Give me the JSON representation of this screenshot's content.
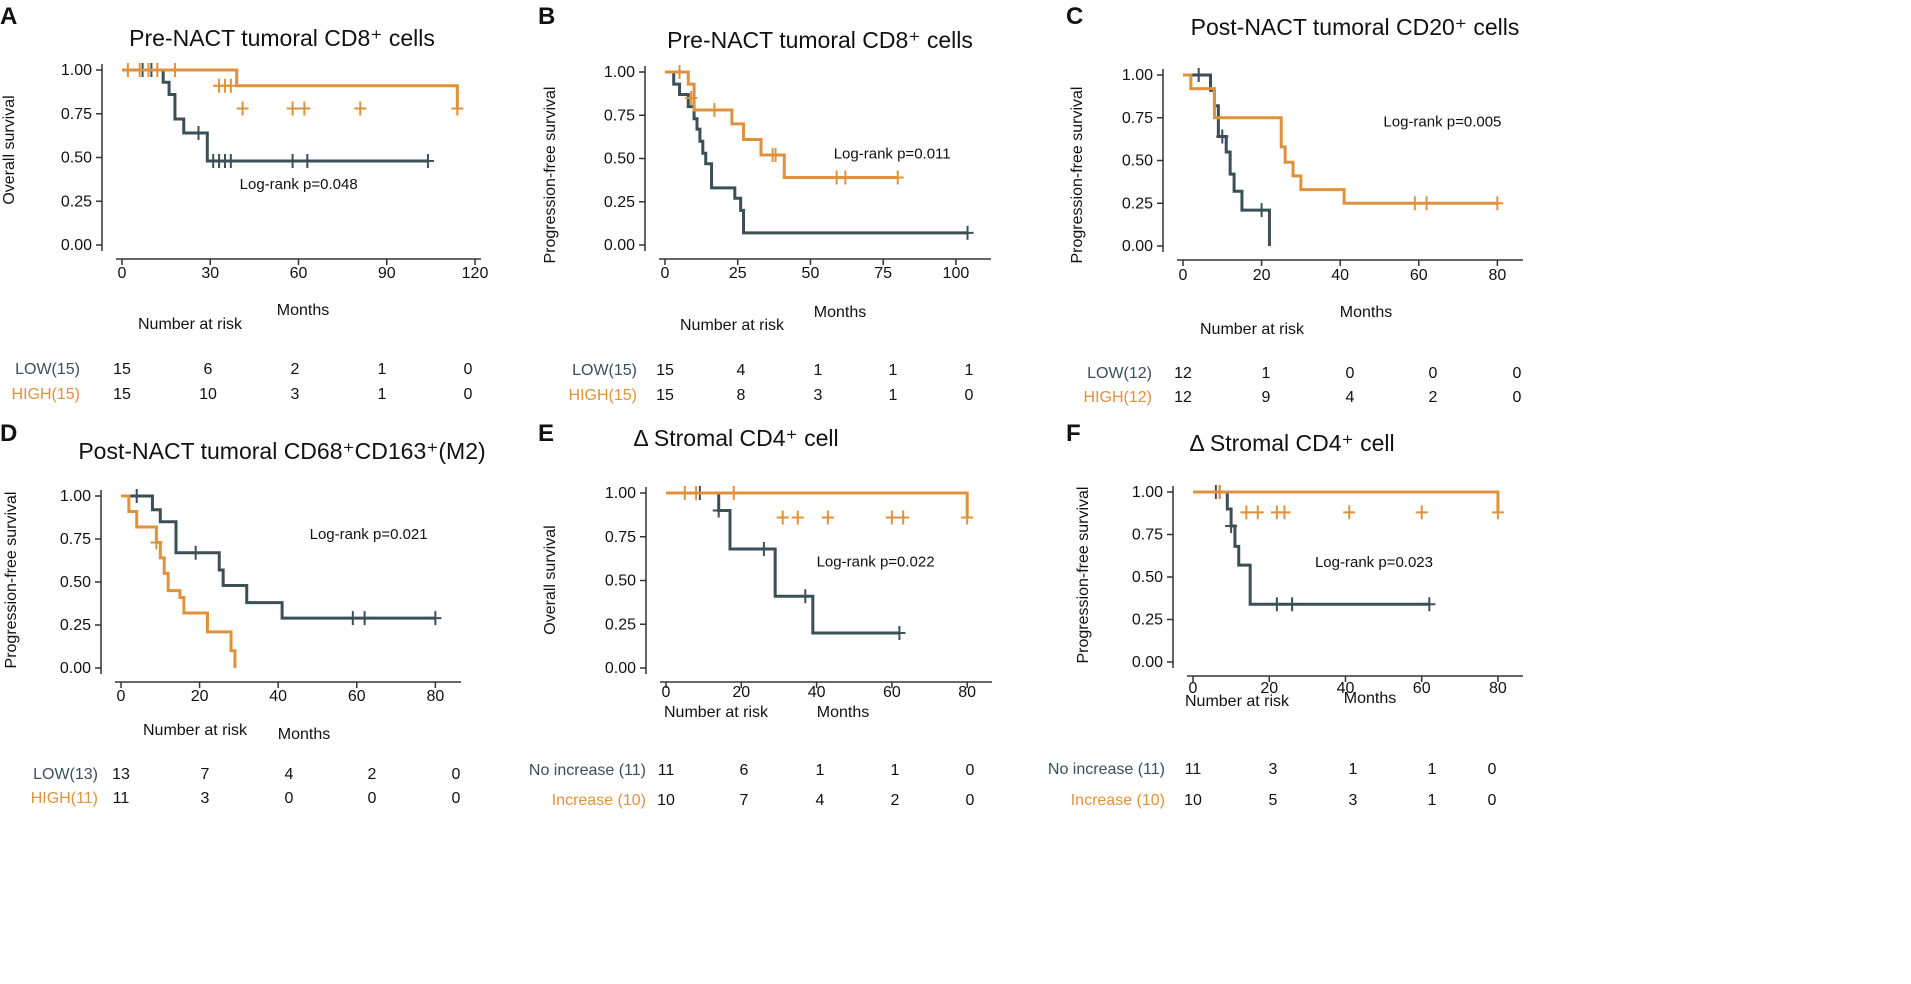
{
  "colors": {
    "low": "#3b4f57",
    "high": "#e0913b",
    "axis": "#333333",
    "text": "#111111"
  },
  "chart_data": [
    {
      "panel": "A",
      "type": "line",
      "title": "Pre-NACT tumoral CD8⁺ cells",
      "xlabel": "Months",
      "ylabel": "Overall survival",
      "xlim": [
        0,
        120
      ],
      "ylim": [
        0,
        1
      ],
      "xticks": [
        0,
        30,
        60,
        90,
        120
      ],
      "yticks": [
        0,
        0.25,
        0.5,
        0.75,
        1.0
      ],
      "ytick_labels": [
        "0.00",
        "0.25",
        "0.50",
        "0.75",
        "1.00"
      ],
      "pvalue": "Log-rank p=0.048",
      "pvalue_at": [
        40,
        0.32
      ],
      "risk_title": "Number at risk",
      "series": [
        {
          "name": "LOW",
          "role": "low",
          "x": [
            0,
            12,
            14,
            16,
            18,
            21,
            27,
            29,
            104
          ],
          "y": [
            1.0,
            1.0,
            0.93,
            0.86,
            0.72,
            0.64,
            0.64,
            0.48,
            0.48
          ],
          "censored": [
            [
              7,
              1.0
            ],
            [
              10,
              1.0
            ],
            [
              26,
              0.64
            ],
            [
              31,
              0.48
            ],
            [
              33,
              0.48
            ],
            [
              35,
              0.48
            ],
            [
              37,
              0.48
            ],
            [
              58,
              0.48
            ],
            [
              63,
              0.48
            ],
            [
              104,
              0.48
            ]
          ]
        },
        {
          "name": "HIGH",
          "role": "high",
          "x": [
            0,
            28,
            39,
            114
          ],
          "y": [
            1.0,
            1.0,
            0.91,
            0.78
          ],
          "censored": [
            [
              2,
              1.0
            ],
            [
              6,
              1.0
            ],
            [
              9,
              1.0
            ],
            [
              12,
              1.0
            ],
            [
              18,
              1.0
            ],
            [
              33,
              0.91
            ],
            [
              35,
              0.91
            ],
            [
              37,
              0.91
            ],
            [
              41,
              0.78
            ],
            [
              58,
              0.78
            ],
            [
              62,
              0.78
            ],
            [
              81,
              0.78
            ],
            [
              114,
              0.78
            ]
          ]
        }
      ],
      "risk_rows": [
        {
          "label": "LOW(15)",
          "role": "low",
          "values": [
            "15",
            "6",
            "2",
            "1",
            "0"
          ]
        },
        {
          "label": "HIGH(15)",
          "role": "high",
          "values": [
            "15",
            "10",
            "3",
            "1",
            "0"
          ]
        }
      ]
    },
    {
      "panel": "B",
      "type": "line",
      "title": "Pre-NACT tumoral CD8⁺ cells",
      "xlabel": "Months",
      "ylabel": "Progression-free survival",
      "xlim": [
        0,
        110
      ],
      "ylim": [
        0,
        1
      ],
      "xticks": [
        0,
        25,
        50,
        75,
        100
      ],
      "yticks": [
        0,
        0.25,
        0.5,
        0.75,
        1.0
      ],
      "ytick_labels": [
        "0.00",
        "0.25",
        "0.50",
        "0.75",
        "1.00"
      ],
      "pvalue": "Log-rank p=0.011",
      "pvalue_at": [
        58,
        0.5
      ],
      "risk_title": "Number at risk",
      "series": [
        {
          "name": "LOW",
          "role": "low",
          "x": [
            0,
            3,
            5,
            8,
            10,
            11,
            12,
            13,
            14,
            16,
            22,
            24,
            26,
            27,
            104
          ],
          "y": [
            1.0,
            0.93,
            0.87,
            0.8,
            0.73,
            0.67,
            0.6,
            0.53,
            0.47,
            0.33,
            0.33,
            0.27,
            0.2,
            0.07,
            0.07
          ],
          "censored": [
            [
              104,
              0.07
            ]
          ]
        },
        {
          "name": "HIGH",
          "role": "high",
          "x": [
            0,
            5,
            8,
            10,
            20,
            23,
            27,
            33,
            41,
            80
          ],
          "y": [
            1.0,
            1.0,
            0.93,
            0.78,
            0.78,
            0.7,
            0.61,
            0.52,
            0.39,
            0.39
          ],
          "censored": [
            [
              5,
              1.0
            ],
            [
              9,
              0.85
            ],
            [
              17,
              0.78
            ],
            [
              37,
              0.52
            ],
            [
              38,
              0.52
            ],
            [
              59,
              0.39
            ],
            [
              62,
              0.39
            ],
            [
              80,
              0.39
            ]
          ]
        }
      ],
      "risk_rows": [
        {
          "label": "LOW(15)",
          "role": "low",
          "values": [
            "15",
            "4",
            "1",
            "1",
            "1"
          ]
        },
        {
          "label": "HIGH(15)",
          "role": "high",
          "values": [
            "15",
            "8",
            "3",
            "1",
            "0"
          ]
        }
      ]
    },
    {
      "panel": "C",
      "type": "line",
      "title": "Post-NACT tumoral CD20⁺ cells",
      "xlabel": "Months",
      "ylabel": "Progression-free survival",
      "xlim": [
        0,
        85
      ],
      "ylim": [
        0,
        1
      ],
      "xticks": [
        0,
        20,
        40,
        60,
        80
      ],
      "yticks": [
        0,
        0.25,
        0.5,
        0.75,
        1.0
      ],
      "ytick_labels": [
        "0.00",
        "0.25",
        "0.50",
        "0.75",
        "1.00"
      ],
      "pvalue": "Log-rank p=0.005",
      "pvalue_at": [
        51,
        0.7
      ],
      "risk_title": "Number at risk",
      "series": [
        {
          "name": "LOW",
          "role": "low",
          "x": [
            0,
            5,
            7,
            8,
            9,
            11,
            12,
            13,
            15,
            16,
            22,
            22
          ],
          "y": [
            1.0,
            1.0,
            0.91,
            0.82,
            0.64,
            0.55,
            0.42,
            0.32,
            0.21,
            0.21,
            0.21,
            0.0
          ],
          "censored": [
            [
              4,
              1.0
            ],
            [
              10,
              0.64
            ],
            [
              20,
              0.21
            ]
          ]
        },
        {
          "name": "HIGH",
          "role": "high",
          "x": [
            0,
            2,
            8,
            25,
            26,
            28,
            30,
            33,
            41,
            80
          ],
          "y": [
            1.0,
            0.92,
            0.75,
            0.58,
            0.49,
            0.41,
            0.33,
            0.33,
            0.25,
            0.25
          ],
          "censored": [
            [
              59,
              0.25
            ],
            [
              62,
              0.25
            ],
            [
              80,
              0.25
            ]
          ]
        }
      ],
      "risk_rows": [
        {
          "label": "LOW(12)",
          "role": "low",
          "values": [
            "12",
            "1",
            "0",
            "0",
            "0"
          ]
        },
        {
          "label": "HIGH(12)",
          "role": "high",
          "values": [
            "12",
            "9",
            "4",
            "2",
            "0"
          ]
        }
      ]
    },
    {
      "panel": "D",
      "type": "line",
      "title": "Post-NACT tumoral CD68⁺CD163⁺(M2)",
      "xlabel": "Months",
      "ylabel": "Progression-free survival",
      "xlim": [
        0,
        85
      ],
      "ylim": [
        0,
        1
      ],
      "xticks": [
        0,
        20,
        40,
        60,
        80
      ],
      "yticks": [
        0,
        0.25,
        0.5,
        0.75,
        1.0
      ],
      "ytick_labels": [
        "0.00",
        "0.25",
        "0.50",
        "0.75",
        "1.00"
      ],
      "pvalue": "Log-rank p=0.021",
      "pvalue_at": [
        48,
        0.75
      ],
      "risk_title": "Number at risk",
      "series": [
        {
          "name": "LOW",
          "role": "low",
          "x": [
            0,
            6,
            8,
            10,
            14,
            20,
            25,
            26,
            32,
            41,
            80
          ],
          "y": [
            1.0,
            1.0,
            0.92,
            0.85,
            0.67,
            0.67,
            0.57,
            0.48,
            0.38,
            0.29,
            0.29
          ],
          "censored": [
            [
              4,
              1.0
            ],
            [
              19,
              0.67
            ],
            [
              59,
              0.29
            ],
            [
              62,
              0.29
            ],
            [
              80,
              0.29
            ]
          ]
        },
        {
          "name": "HIGH",
          "role": "high",
          "x": [
            0,
            2,
            4,
            7,
            9,
            10,
            11,
            12,
            15,
            16,
            22,
            28,
            29
          ],
          "y": [
            1.0,
            0.91,
            0.82,
            0.82,
            0.73,
            0.64,
            0.55,
            0.45,
            0.41,
            0.32,
            0.21,
            0.1,
            0.0
          ],
          "censored": [
            [
              9,
              0.73
            ]
          ]
        }
      ],
      "risk_rows": [
        {
          "label": "LOW(13)",
          "role": "low",
          "values": [
            "13",
            "7",
            "4",
            "2",
            "0"
          ]
        },
        {
          "label": "HIGH(11)",
          "role": "high",
          "values": [
            "11",
            "3",
            "0",
            "0",
            "0"
          ]
        }
      ]
    },
    {
      "panel": "E",
      "type": "line",
      "title": "Δ Stromal CD4⁺ cell",
      "xlabel": "Months",
      "ylabel": "Overall survival",
      "xlim": [
        0,
        85
      ],
      "ylim": [
        0,
        1
      ],
      "xticks": [
        0,
        20,
        40,
        60,
        80
      ],
      "yticks": [
        0,
        0.25,
        0.5,
        0.75,
        1.0
      ],
      "ytick_labels": [
        "0.00",
        "0.25",
        "0.50",
        "0.75",
        "1.00"
      ],
      "pvalue": "Log-rank p=0.022",
      "pvalue_at": [
        40,
        0.58
      ],
      "risk_title": "Number at risk",
      "series": [
        {
          "name": "No increase",
          "role": "low",
          "x": [
            0,
            13,
            14,
            17,
            28,
            29,
            39,
            62
          ],
          "y": [
            1.0,
            1.0,
            0.9,
            0.68,
            0.68,
            0.41,
            0.2,
            0.2
          ],
          "censored": [
            [
              9,
              1.0
            ],
            [
              14,
              0.9
            ],
            [
              26,
              0.68
            ],
            [
              37,
              0.41
            ],
            [
              62,
              0.2
            ]
          ]
        },
        {
          "name": "Increase",
          "role": "high",
          "x": [
            0,
            29,
            80
          ],
          "y": [
            1.0,
            1.0,
            0.86
          ],
          "censored": [
            [
              5,
              1.0
            ],
            [
              8,
              1.0
            ],
            [
              18,
              1.0
            ],
            [
              31,
              0.86
            ],
            [
              35,
              0.86
            ],
            [
              43,
              0.86
            ],
            [
              60,
              0.86
            ],
            [
              63,
              0.86
            ],
            [
              80,
              0.86
            ]
          ]
        }
      ],
      "risk_rows": [
        {
          "label": "No increase (11)",
          "role": "low",
          "values": [
            "11",
            "6",
            "1",
            "1",
            "0"
          ]
        },
        {
          "label": "Increase (10)",
          "role": "high",
          "values": [
            "10",
            "7",
            "4",
            "2",
            "0"
          ]
        }
      ]
    },
    {
      "panel": "F",
      "type": "line",
      "title": "Δ Stromal CD4⁺ cell",
      "xlabel": "Months",
      "ylabel": "Progression-free survival",
      "xlim": [
        0,
        85
      ],
      "ylim": [
        0,
        1
      ],
      "xticks": [
        0,
        20,
        40,
        60,
        80
      ],
      "yticks": [
        0,
        0.25,
        0.5,
        0.75,
        1.0
      ],
      "ytick_labels": [
        "0.00",
        "0.25",
        "0.50",
        "0.75",
        "1.00"
      ],
      "pvalue": "Log-rank p=0.023",
      "pvalue_at": [
        32,
        0.56
      ],
      "risk_title": "Number at risk",
      "series": [
        {
          "name": "No increase",
          "role": "low",
          "x": [
            0,
            8,
            9,
            10,
            11,
            12,
            15,
            62
          ],
          "y": [
            1.0,
            1.0,
            0.9,
            0.8,
            0.68,
            0.57,
            0.34,
            0.34
          ],
          "censored": [
            [
              6,
              1.0
            ],
            [
              7,
              1.0
            ],
            [
              10,
              0.8
            ],
            [
              22,
              0.34
            ],
            [
              26,
              0.34
            ],
            [
              62,
              0.34
            ]
          ]
        },
        {
          "name": "Increase",
          "role": "high",
          "x": [
            0,
            12,
            80
          ],
          "y": [
            1.0,
            1.0,
            0.88
          ],
          "censored": [
            [
              7,
              1.0
            ],
            [
              14,
              0.88
            ],
            [
              17,
              0.88
            ],
            [
              22,
              0.88
            ],
            [
              24,
              0.88
            ],
            [
              41,
              0.88
            ],
            [
              60,
              0.88
            ],
            [
              80,
              0.88
            ]
          ]
        }
      ],
      "risk_rows": [
        {
          "label": "No increase (11)",
          "role": "low",
          "values": [
            "11",
            "3",
            "1",
            "1",
            "0"
          ]
        },
        {
          "label": "Increase  (10)",
          "role": "high",
          "values": [
            "10",
            "5",
            "3",
            "1",
            "0"
          ]
        }
      ]
    }
  ]
}
